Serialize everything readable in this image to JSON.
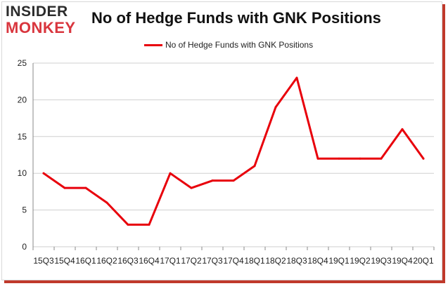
{
  "logo": {
    "line1": "INSIDER",
    "line2": "MONKEY"
  },
  "colors": {
    "series": "#e8000b",
    "grid": "#cfcfcf",
    "axis": "#888888",
    "text": "#222222"
  },
  "chart_data": {
    "type": "line",
    "title": "No of Hedge Funds with GNK Positions",
    "xlabel": "",
    "ylabel": "",
    "categories": [
      "2015Q3",
      "2015Q4",
      "2016Q1",
      "2016Q2",
      "2016Q3",
      "2016Q4",
      "2017Q1",
      "2017Q2",
      "2017Q3",
      "2017Q4",
      "2018Q1",
      "2018Q2",
      "2018Q3",
      "2018Q4",
      "2019Q1",
      "2019Q2",
      "2019Q3",
      "2019Q4",
      "2020Q1"
    ],
    "tick_labels": [
      "15Q3",
      "15Q4",
      "16Q1",
      "16Q2",
      "16Q3",
      "16Q4",
      "17Q1",
      "17Q2",
      "17Q3",
      "17Q4",
      "18Q1",
      "18Q2",
      "18Q3",
      "18Q4",
      "19Q1",
      "19Q2",
      "19Q3",
      "19Q4",
      "20Q1"
    ],
    "series": [
      {
        "name": "No of Hedge Funds with GNK Positions",
        "values": [
          10,
          8,
          8,
          6,
          3,
          3,
          10,
          8,
          9,
          9,
          11,
          19,
          23,
          12,
          12,
          12,
          12,
          16,
          12
        ]
      }
    ],
    "ylim": [
      0,
      25
    ],
    "yticks": [
      0,
      5,
      10,
      15,
      20,
      25
    ],
    "grid": true,
    "legend": "top-center"
  }
}
